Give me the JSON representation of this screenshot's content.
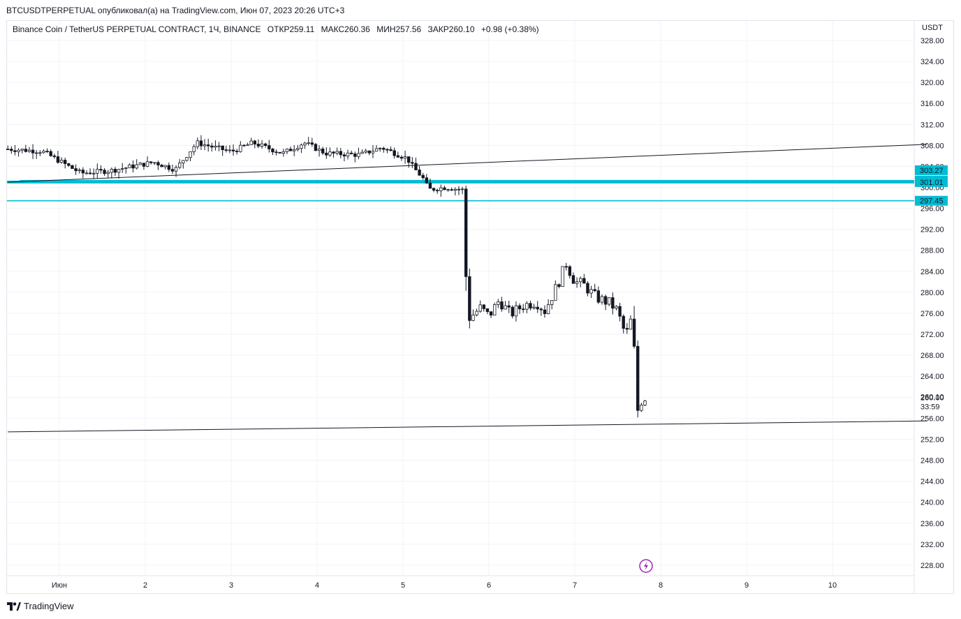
{
  "publisher_line": "BTCUSDTPERPETUAL опубликовал(а) на TradingView.com, Июн 07, 2023 20:26 UTC+3",
  "legend": {
    "symbol": "Binance Coin / TetherUS PERPETUAL CONTRACT, 1Ч, BINANCE",
    "open": "ОТКР259.11",
    "high": "МАКС260.36",
    "low": "МИН257.56",
    "close": "ЗАКР260.10",
    "change": "+0.98 (+0.38%)"
  },
  "currency": "USDT",
  "footer_brand": "TradingView",
  "countdown": "33:59",
  "colors": {
    "candle": "#131722",
    "hline": "#00bcd4",
    "label_bg": "#00bcd4",
    "trendline": "#131722",
    "grid": "#f0f3fa",
    "flash": "#9c27b0"
  },
  "icons": {
    "flash": "lightning-icon",
    "logo": "tradingview-logo-icon"
  },
  "chart_data": {
    "type": "candlestick",
    "title": "",
    "xlabel": "",
    "ylabel": "",
    "ylim": [
      226,
      330
    ],
    "yticks": [
      "328.00",
      "324.00",
      "320.00",
      "316.00",
      "312.00",
      "308.00",
      "304.00",
      "300.00",
      "296.00",
      "292.00",
      "288.00",
      "284.00",
      "280.00",
      "276.00",
      "272.00",
      "268.00",
      "264.00",
      "260.00",
      "256.00",
      "252.00",
      "248.00",
      "244.00",
      "240.00",
      "236.00",
      "232.00",
      "228.00"
    ],
    "xticks": [
      {
        "label": "Июн",
        "day": 1
      },
      {
        "label": "2",
        "day": 2
      },
      {
        "label": "3",
        "day": 3
      },
      {
        "label": "4",
        "day": 4
      },
      {
        "label": "5",
        "day": 5
      },
      {
        "label": "6",
        "day": 6
      },
      {
        "label": "7",
        "day": 7
      },
      {
        "label": "8",
        "day": 8
      },
      {
        "label": "9",
        "day": 9
      },
      {
        "label": "10",
        "day": 10
      }
    ],
    "price_labels": [
      {
        "value": 303.27,
        "label": "303.27"
      },
      {
        "value": 301.3,
        "label": "301.30"
      },
      {
        "value": 301.01,
        "label": "301.01"
      },
      {
        "value": 297.45,
        "label": "297.45"
      },
      {
        "value": 260.1,
        "label": "260.10"
      }
    ],
    "horizontal_lines": [
      301.3,
      301.01,
      297.45
    ],
    "trendlines": [
      {
        "from": [
          0.4,
          301.0
        ],
        "to": [
          11.1,
          308.2
        ]
      },
      {
        "from": [
          0.4,
          253.4
        ],
        "to": [
          11.1,
          255.5
        ]
      }
    ],
    "anchors": [
      {
        "t": 0.4,
        "p": 307.3
      },
      {
        "t": 0.8,
        "p": 306.9
      },
      {
        "t": 1.25,
        "p": 302.7
      },
      {
        "t": 1.6,
        "p": 303.2
      },
      {
        "t": 2.1,
        "p": 304.8
      },
      {
        "t": 2.35,
        "p": 303.4
      },
      {
        "t": 2.6,
        "p": 308.5
      },
      {
        "t": 3.0,
        "p": 306.8
      },
      {
        "t": 3.25,
        "p": 308.5
      },
      {
        "t": 3.6,
        "p": 306.5
      },
      {
        "t": 3.85,
        "p": 308.5
      },
      {
        "t": 4.1,
        "p": 306.5
      },
      {
        "t": 4.5,
        "p": 306.2
      },
      {
        "t": 4.75,
        "p": 307.6
      },
      {
        "t": 5.05,
        "p": 305.5
      },
      {
        "t": 5.12,
        "p": 303.8
      },
      {
        "t": 5.23,
        "p": 301.8
      },
      {
        "t": 5.3,
        "p": 299.6
      },
      {
        "t": 5.5,
        "p": 300.0
      },
      {
        "t": 5.7,
        "p": 299.5
      },
      {
        "t": 5.75,
        "p": 274.8
      },
      {
        "t": 5.9,
        "p": 277.0
      },
      {
        "t": 6.0,
        "p": 275.5
      },
      {
        "t": 6.12,
        "p": 278.5
      },
      {
        "t": 6.25,
        "p": 275.8
      },
      {
        "t": 6.4,
        "p": 277.5
      },
      {
        "t": 6.55,
        "p": 278.2
      },
      {
        "t": 6.65,
        "p": 276.5
      },
      {
        "t": 6.8,
        "p": 281.5
      },
      {
        "t": 6.9,
        "p": 285.5
      },
      {
        "t": 7.0,
        "p": 282.0
      },
      {
        "t": 7.1,
        "p": 281.5
      },
      {
        "t": 7.25,
        "p": 279.0
      },
      {
        "t": 7.4,
        "p": 278.0
      },
      {
        "t": 7.5,
        "p": 276.5
      },
      {
        "t": 7.55,
        "p": 273.5
      },
      {
        "t": 7.6,
        "p": 272.0
      },
      {
        "t": 7.65,
        "p": 274.5
      },
      {
        "t": 7.7,
        "p": 268.0
      },
      {
        "t": 7.72,
        "p": 257.0
      },
      {
        "t": 7.78,
        "p": 259.5
      },
      {
        "t": 7.84,
        "p": 260.1
      }
    ]
  }
}
